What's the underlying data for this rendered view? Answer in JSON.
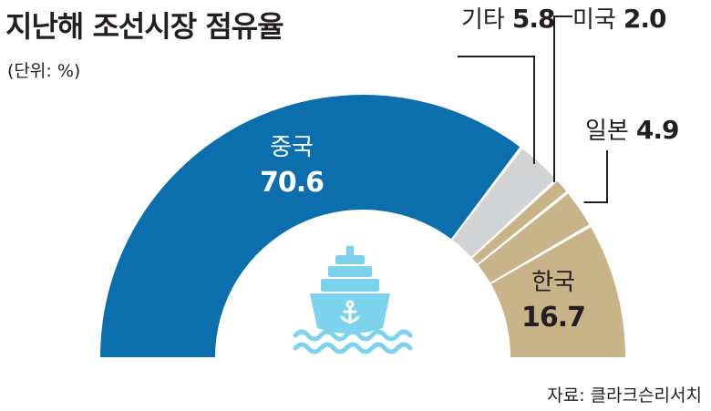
{
  "chart_data": {
    "type": "pie",
    "title": "지난해 조선시장 점유율",
    "subtitle": "(단위: %)",
    "source": "자료: 클라크슨리서치",
    "slices": [
      {
        "label": "중국",
        "value": 70.6,
        "color": "#0b6fad"
      },
      {
        "label": "기타",
        "value": 5.8,
        "color": "#d1d3d4"
      },
      {
        "label": "미국",
        "value": 2.0,
        "color": "#c9b489"
      },
      {
        "label": "일본",
        "value": 4.9,
        "color": "#c9b489"
      },
      {
        "label": "한국",
        "value": 16.7,
        "color": "#c9b489"
      }
    ]
  },
  "colors": {
    "ship": "#7dd3ee",
    "line": "#231f20"
  },
  "icons": {
    "center": "ship-icon"
  }
}
